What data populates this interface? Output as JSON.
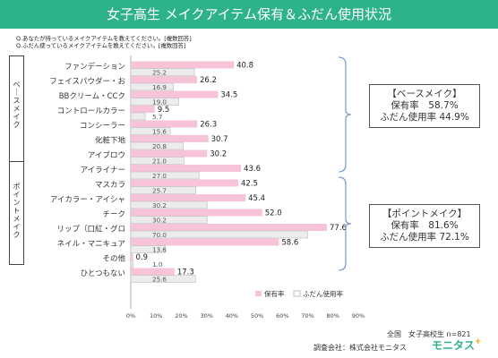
{
  "title": "女子高生 メイクアイテム保有＆ふだん使用状況",
  "questions": [
    "Q.あなたが持っているメイクアイテムを教えてください。[複数回答]",
    "Q.ふだん使っているメイクアイテムを教えてください。[複数回答]"
  ],
  "groups": {
    "base": "ベースメイク",
    "point": "ポイントメイク"
  },
  "summaries": {
    "base": {
      "title": "【ベースメイク】",
      "own_line": "保有率　58.7%",
      "use_line": "ふだん使用率 44.9%"
    },
    "point": {
      "title": "【ポイントメイク】",
      "own_line": "保有率　81.6%",
      "use_line": "ふだん使用率 72.1%"
    }
  },
  "footer": {
    "sample": "全国　女子高校生 n=821",
    "survey": "調査会社：株式会社モニタス"
  },
  "logo": {
    "text": "モニタス",
    "spark": "+"
  },
  "colors": {
    "header": "#2eb28a",
    "own_bar": "#f7c3d8",
    "use_bar": "#ececec",
    "bracket": "#6c8fc7"
  },
  "chart_data": {
    "type": "bar",
    "orientation": "horizontal",
    "categories": [
      "ファンデーション",
      "フェイスパウダー・お",
      "BBクリーム・CCク",
      "コントロールカラー",
      "コンシーラー",
      "化粧下地",
      "アイブロウ",
      "アイライナー",
      "マスカラ",
      "アイカラー・アイシャ",
      "チーク",
      "リップ（口紅・グロ",
      "ネイル・マニキュア",
      "その他",
      "ひとつもない"
    ],
    "series": [
      {
        "name": "保有率",
        "values": [
          40.8,
          26.2,
          34.5,
          9.5,
          26.3,
          30.7,
          30.2,
          43.6,
          42.5,
          45.4,
          52.0,
          77.6,
          58.6,
          0.9,
          17.3
        ],
        "labels": [
          "40.8",
          "26.2",
          "34.5",
          "9.5",
          "26.3",
          "30.7",
          "30.2",
          "43.6",
          "42.5",
          "45.4",
          "52.0",
          "77.6",
          "58.6",
          "0.9",
          "17.3"
        ]
      },
      {
        "name": "ふだん使用率",
        "values": [
          25.2,
          16.9,
          19.0,
          5.7,
          15.6,
          20.8,
          21.0,
          27.0,
          25.7,
          30.2,
          30.2,
          70.0,
          13.6,
          1.0,
          25.6
        ],
        "labels": [
          "25.2",
          "16.9",
          "19.0",
          "5.7",
          "15.6",
          "20.8",
          "21.0",
          "27.0",
          "25.7",
          "30.2",
          "30.2",
          "70.0",
          "13.6",
          "1.0",
          "25.6"
        ]
      }
    ],
    "x_ticks": [
      "0%",
      "10%",
      "20%",
      "30%",
      "40%",
      "50%",
      "60%",
      "70%",
      "80%",
      "90%"
    ],
    "xlim": [
      0,
      90
    ],
    "grid": false,
    "legend_position": "bottom-right"
  }
}
